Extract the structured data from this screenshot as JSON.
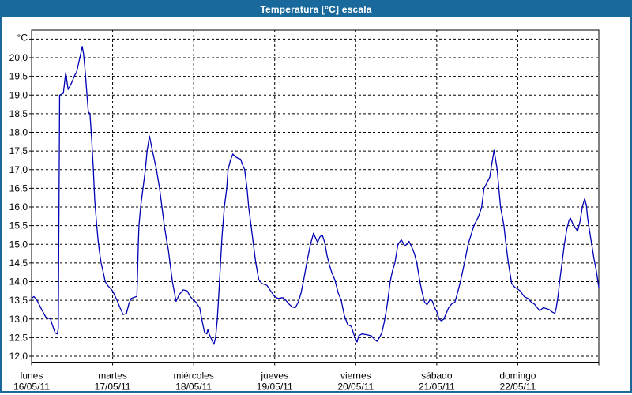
{
  "window": {
    "title": "Temperatura [°C] escala"
  },
  "colors": {
    "frame_blue": "#19699c",
    "title_text": "#ffffff",
    "line": "#0000b4",
    "grid": "#000000",
    "background": "#ffffff"
  },
  "chart_data": {
    "type": "line",
    "title": "Temperatura [°C] escala",
    "y_axis": {
      "unit_label": "°C",
      "min": 11.8,
      "max": 20.75,
      "grid_min": 12.0,
      "grid_max": 20.5,
      "grid_step": 0.5,
      "tick_labels": [
        "20,0",
        "19,5",
        "19,0",
        "18,5",
        "18,0",
        "17,5",
        "17,0",
        "16,5",
        "16,0",
        "15,5",
        "15,0",
        "14,5",
        "14,0",
        "13,5",
        "13,0",
        "12,5",
        "12,0"
      ],
      "grid_style": "dashed"
    },
    "x_axis": {
      "unit": "hours",
      "range_hours": [
        0,
        168
      ],
      "days": [
        {
          "name": "lunes",
          "date": "16/05/11"
        },
        {
          "name": "martes",
          "date": "17/05/11"
        },
        {
          "name": "miércoles",
          "date": "18/05/11"
        },
        {
          "name": "jueves",
          "date": "19/05/11"
        },
        {
          "name": "viernes",
          "date": "20/05/11"
        },
        {
          "name": "sábado",
          "date": "21/05/11"
        },
        {
          "name": "domingo",
          "date": "22/05/11"
        }
      ],
      "grid_style": "dashed"
    },
    "legend": "none",
    "series": [
      {
        "name": "Temperatura",
        "color": "#0000b4",
        "points_hour_temp": [
          [
            0,
            13.55
          ],
          [
            0.7,
            13.6
          ],
          [
            1.6,
            13.5
          ],
          [
            3,
            13.25
          ],
          [
            4.2,
            13.05
          ],
          [
            5.6,
            13.0
          ],
          [
            6.1,
            12.85
          ],
          [
            7,
            12.62
          ],
          [
            7.6,
            12.6
          ],
          [
            7.9,
            12.75
          ],
          [
            8.3,
            19.0
          ],
          [
            9.4,
            19.05
          ],
          [
            10.1,
            19.6
          ],
          [
            10.8,
            19.15
          ],
          [
            11.7,
            19.3
          ],
          [
            12.9,
            19.55
          ],
          [
            13.3,
            19.6
          ],
          [
            14.3,
            20.0
          ],
          [
            15,
            20.3
          ],
          [
            15.4,
            20.1
          ],
          [
            15.9,
            19.6
          ],
          [
            16.4,
            19.0
          ],
          [
            16.8,
            18.55
          ],
          [
            17.3,
            18.5
          ],
          [
            17.8,
            17.8
          ],
          [
            18.3,
            17.0
          ],
          [
            18.7,
            16.2
          ],
          [
            19.2,
            15.6
          ],
          [
            19.7,
            15.1
          ],
          [
            20.1,
            14.8
          ],
          [
            20.6,
            14.5
          ],
          [
            21.1,
            14.3
          ],
          [
            21.8,
            14.0
          ],
          [
            22.5,
            13.9
          ],
          [
            24,
            13.75
          ],
          [
            25.3,
            13.5
          ],
          [
            26.2,
            13.3
          ],
          [
            27.1,
            13.12
          ],
          [
            28.1,
            13.15
          ],
          [
            28.8,
            13.4
          ],
          [
            29.5,
            13.55
          ],
          [
            30.4,
            13.58
          ],
          [
            31.2,
            13.6
          ],
          [
            31.6,
            15.0
          ],
          [
            31.8,
            15.5
          ],
          [
            32.3,
            16.0
          ],
          [
            33,
            16.5
          ],
          [
            33.7,
            17.0
          ],
          [
            34.2,
            17.5
          ],
          [
            34.9,
            17.9
          ],
          [
            35.8,
            17.5
          ],
          [
            37,
            17.0
          ],
          [
            37.9,
            16.5
          ],
          [
            38.6,
            16.0
          ],
          [
            39.3,
            15.5
          ],
          [
            40,
            15.1
          ],
          [
            40.5,
            14.85
          ],
          [
            41.7,
            14.0
          ],
          [
            42.8,
            13.47
          ],
          [
            43.7,
            13.65
          ],
          [
            44.9,
            13.78
          ],
          [
            46.1,
            13.75
          ],
          [
            47,
            13.6
          ],
          [
            48,
            13.5
          ],
          [
            48.7,
            13.45
          ],
          [
            49.4,
            13.35
          ],
          [
            49.8,
            13.3
          ],
          [
            50.5,
            12.95
          ],
          [
            51.2,
            12.65
          ],
          [
            51.9,
            12.6
          ],
          [
            52.2,
            12.72
          ],
          [
            52.6,
            12.6
          ],
          [
            53.3,
            12.45
          ],
          [
            54,
            12.32
          ],
          [
            54.5,
            12.5
          ],
          [
            55,
            13.0
          ],
          [
            55.4,
            13.6
          ],
          [
            55.9,
            14.4
          ],
          [
            56.4,
            15.2
          ],
          [
            57.1,
            16.0
          ],
          [
            57.8,
            16.5
          ],
          [
            58.2,
            17.0
          ],
          [
            58.9,
            17.25
          ],
          [
            59.6,
            17.42
          ],
          [
            60.3,
            17.35
          ],
          [
            61.2,
            17.3
          ],
          [
            61.9,
            17.28
          ],
          [
            62.4,
            17.15
          ],
          [
            63.1,
            17.0
          ],
          [
            63.8,
            16.5
          ],
          [
            64.3,
            16.0
          ],
          [
            65,
            15.5
          ],
          [
            65.7,
            15.0
          ],
          [
            66.4,
            14.5
          ],
          [
            67.3,
            14.05
          ],
          [
            68.2,
            13.95
          ],
          [
            69.7,
            13.9
          ],
          [
            70.8,
            13.75
          ],
          [
            72,
            13.6
          ],
          [
            73,
            13.55
          ],
          [
            74.4,
            13.57
          ],
          [
            75.3,
            13.5
          ],
          [
            76.2,
            13.4
          ],
          [
            77.2,
            13.32
          ],
          [
            78.1,
            13.3
          ],
          [
            79,
            13.45
          ],
          [
            79.8,
            13.7
          ],
          [
            80.7,
            14.1
          ],
          [
            81.6,
            14.55
          ],
          [
            82.6,
            15.0
          ],
          [
            83.5,
            15.3
          ],
          [
            84.2,
            15.15
          ],
          [
            84.7,
            15.05
          ],
          [
            85.4,
            15.2
          ],
          [
            86.1,
            15.25
          ],
          [
            86.8,
            15.05
          ],
          [
            87.5,
            14.7
          ],
          [
            88.2,
            14.45
          ],
          [
            88.9,
            14.25
          ],
          [
            89.8,
            14.05
          ],
          [
            90.8,
            13.7
          ],
          [
            91.7,
            13.5
          ],
          [
            92.6,
            13.1
          ],
          [
            93.6,
            12.85
          ],
          [
            94.7,
            12.8
          ],
          [
            95.4,
            12.6
          ],
          [
            96,
            12.45
          ],
          [
            96.4,
            12.38
          ],
          [
            96.9,
            12.55
          ],
          [
            97.8,
            12.6
          ],
          [
            99.2,
            12.58
          ],
          [
            100.6,
            12.55
          ],
          [
            101.6,
            12.45
          ],
          [
            102.3,
            12.4
          ],
          [
            103,
            12.5
          ],
          [
            103.7,
            12.62
          ],
          [
            104.4,
            12.9
          ],
          [
            105,
            13.2
          ],
          [
            105.5,
            13.5
          ],
          [
            106.2,
            14.0
          ],
          [
            106.9,
            14.3
          ],
          [
            107.6,
            14.5
          ],
          [
            108.5,
            15.0
          ],
          [
            109.5,
            15.12
          ],
          [
            110.6,
            14.95
          ],
          [
            111.8,
            15.08
          ],
          [
            112.7,
            14.9
          ],
          [
            113.4,
            14.75
          ],
          [
            114.1,
            14.5
          ],
          [
            115,
            14.0
          ],
          [
            115.7,
            13.7
          ],
          [
            116.4,
            13.45
          ],
          [
            117.1,
            13.38
          ],
          [
            118,
            13.52
          ],
          [
            118.7,
            13.48
          ],
          [
            119.4,
            13.3
          ],
          [
            120,
            13.2
          ],
          [
            120.7,
            13.0
          ],
          [
            121.4,
            12.95
          ],
          [
            122.1,
            13.0
          ],
          [
            122.8,
            13.15
          ],
          [
            123.5,
            13.3
          ],
          [
            124.4,
            13.4
          ],
          [
            125.4,
            13.45
          ],
          [
            126.3,
            13.75
          ],
          [
            127,
            14.0
          ],
          [
            128.2,
            14.5
          ],
          [
            129.3,
            15.0
          ],
          [
            131,
            15.5
          ],
          [
            132.4,
            15.75
          ],
          [
            133.3,
            16.0
          ],
          [
            134,
            16.5
          ],
          [
            134.9,
            16.65
          ],
          [
            135.7,
            16.8
          ],
          [
            136.2,
            17.1
          ],
          [
            137,
            17.52
          ],
          [
            137.9,
            17.0
          ],
          [
            138.4,
            16.5
          ],
          [
            138.9,
            16.0
          ],
          [
            139.4,
            15.75
          ],
          [
            139.9,
            15.5
          ],
          [
            140.5,
            15.0
          ],
          [
            141.2,
            14.5
          ],
          [
            142.2,
            13.95
          ],
          [
            143.1,
            13.85
          ],
          [
            144,
            13.8
          ],
          [
            144.7,
            13.75
          ],
          [
            145.9,
            13.6
          ],
          [
            147,
            13.55
          ],
          [
            148,
            13.45
          ],
          [
            148.9,
            13.4
          ],
          [
            149.8,
            13.3
          ],
          [
            150.5,
            13.22
          ],
          [
            151.5,
            13.3
          ],
          [
            152.4,
            13.28
          ],
          [
            153.3,
            13.25
          ],
          [
            154.3,
            13.18
          ],
          [
            155,
            13.15
          ],
          [
            155.4,
            13.3
          ],
          [
            155.9,
            13.6
          ],
          [
            156.4,
            14.0
          ],
          [
            157.1,
            14.5
          ],
          [
            157.8,
            15.0
          ],
          [
            158.5,
            15.4
          ],
          [
            159.2,
            15.65
          ],
          [
            159.6,
            15.7
          ],
          [
            160.3,
            15.55
          ],
          [
            161,
            15.45
          ],
          [
            161.7,
            15.35
          ],
          [
            162.4,
            15.6
          ],
          [
            163.1,
            16.0
          ],
          [
            163.8,
            16.22
          ],
          [
            164.3,
            16.05
          ],
          [
            164.7,
            15.7
          ],
          [
            165.2,
            15.4
          ],
          [
            165.9,
            15.0
          ],
          [
            166.6,
            14.6
          ],
          [
            167.2,
            14.32
          ],
          [
            168,
            13.85
          ]
        ]
      }
    ]
  }
}
